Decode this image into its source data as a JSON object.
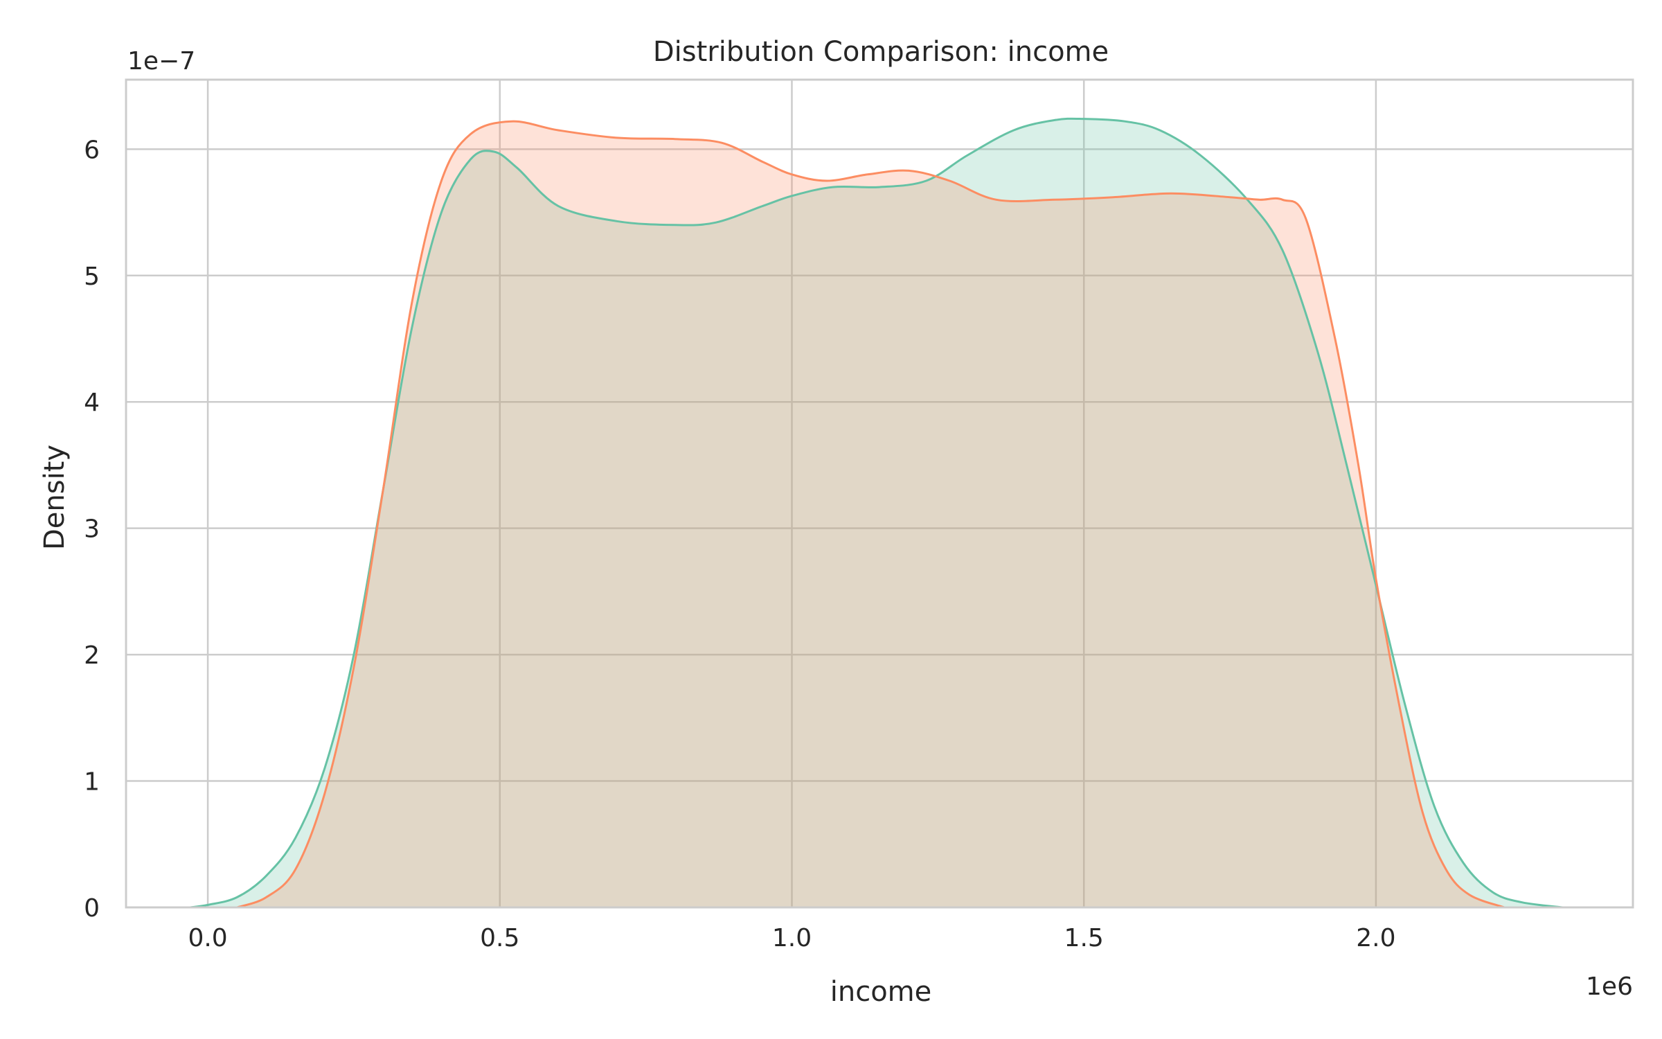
{
  "chart_data": {
    "type": "area",
    "title": "Distribution Comparison: income",
    "xlabel": "income",
    "ylabel": "Density",
    "x_multiplier": "1e6",
    "y_multiplier": "1e−7",
    "xlim": [
      -0.14,
      2.44
    ],
    "ylim": [
      0,
      6.55
    ],
    "x_ticks": [
      0.0,
      0.5,
      1.0,
      1.5,
      2.0
    ],
    "x_tick_labels": [
      "0.0",
      "0.5",
      "1.0",
      "1.5",
      "2.0"
    ],
    "y_ticks": [
      0,
      1,
      2,
      3,
      4,
      5,
      6
    ],
    "y_tick_labels": [
      "0",
      "1",
      "2",
      "3",
      "4",
      "5",
      "6"
    ],
    "grid": true,
    "series": [
      {
        "color": "#66c2a5",
        "fill_opacity": 0.25,
        "points": [
          [
            -0.03,
            0.0
          ],
          [
            0.0,
            0.02
          ],
          [
            0.05,
            0.08
          ],
          [
            0.1,
            0.25
          ],
          [
            0.15,
            0.55
          ],
          [
            0.2,
            1.1
          ],
          [
            0.25,
            2.0
          ],
          [
            0.3,
            3.3
          ],
          [
            0.35,
            4.6
          ],
          [
            0.4,
            5.5
          ],
          [
            0.45,
            5.92
          ],
          [
            0.49,
            5.98
          ],
          [
            0.53,
            5.85
          ],
          [
            0.6,
            5.55
          ],
          [
            0.7,
            5.43
          ],
          [
            0.8,
            5.4
          ],
          [
            0.87,
            5.42
          ],
          [
            0.95,
            5.55
          ],
          [
            1.0,
            5.63
          ],
          [
            1.07,
            5.7
          ],
          [
            1.15,
            5.7
          ],
          [
            1.23,
            5.75
          ],
          [
            1.3,
            5.95
          ],
          [
            1.38,
            6.15
          ],
          [
            1.45,
            6.23
          ],
          [
            1.5,
            6.24
          ],
          [
            1.57,
            6.22
          ],
          [
            1.63,
            6.15
          ],
          [
            1.7,
            5.95
          ],
          [
            1.78,
            5.6
          ],
          [
            1.84,
            5.2
          ],
          [
            1.9,
            4.4
          ],
          [
            1.95,
            3.5
          ],
          [
            2.0,
            2.55
          ],
          [
            2.05,
            1.6
          ],
          [
            2.1,
            0.8
          ],
          [
            2.15,
            0.35
          ],
          [
            2.2,
            0.12
          ],
          [
            2.25,
            0.04
          ],
          [
            2.32,
            0.0
          ]
        ]
      },
      {
        "color": "#fc8d62",
        "fill_opacity": 0.25,
        "points": [
          [
            0.05,
            0.0
          ],
          [
            0.1,
            0.08
          ],
          [
            0.15,
            0.3
          ],
          [
            0.2,
            0.9
          ],
          [
            0.25,
            1.9
          ],
          [
            0.3,
            3.3
          ],
          [
            0.35,
            4.8
          ],
          [
            0.4,
            5.75
          ],
          [
            0.45,
            6.12
          ],
          [
            0.52,
            6.22
          ],
          [
            0.6,
            6.15
          ],
          [
            0.7,
            6.09
          ],
          [
            0.8,
            6.08
          ],
          [
            0.88,
            6.05
          ],
          [
            0.95,
            5.9
          ],
          [
            1.0,
            5.8
          ],
          [
            1.06,
            5.75
          ],
          [
            1.13,
            5.8
          ],
          [
            1.2,
            5.83
          ],
          [
            1.27,
            5.75
          ],
          [
            1.35,
            5.6
          ],
          [
            1.45,
            5.6
          ],
          [
            1.55,
            5.62
          ],
          [
            1.65,
            5.65
          ],
          [
            1.75,
            5.62
          ],
          [
            1.8,
            5.6
          ],
          [
            1.84,
            5.6
          ],
          [
            1.88,
            5.45
          ],
          [
            1.93,
            4.5
          ],
          [
            1.97,
            3.5
          ],
          [
            2.0,
            2.6
          ],
          [
            2.04,
            1.6
          ],
          [
            2.08,
            0.75
          ],
          [
            2.12,
            0.3
          ],
          [
            2.16,
            0.1
          ],
          [
            2.22,
            0.0
          ]
        ]
      }
    ]
  }
}
